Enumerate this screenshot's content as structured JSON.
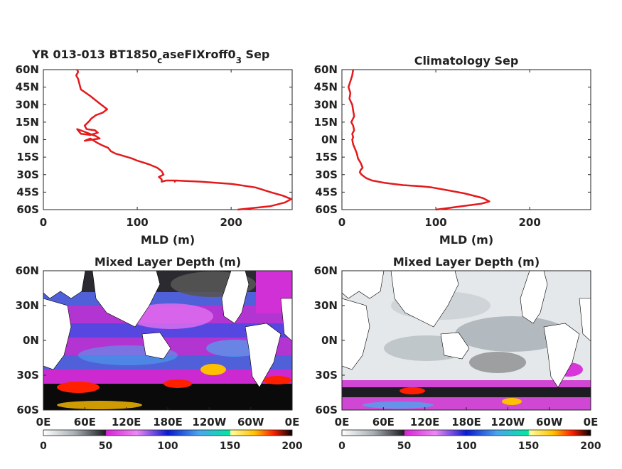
{
  "chart_data": [
    {
      "type": "line",
      "title_parts": [
        "YR 013-013 BT1850",
        "c",
        "aseFIXroff0",
        "3",
        " Sep"
      ],
      "xlabel": "MLD (m)",
      "ylabel": "",
      "xlim": [
        0,
        265
      ],
      "ylim": [
        -60,
        60
      ],
      "xticks": [
        0,
        100,
        200
      ],
      "xtick_labels": [
        "0",
        "100",
        "200"
      ],
      "yticks": [
        60,
        45,
        30,
        15,
        0,
        -15,
        -30,
        -45,
        -60
      ],
      "ytick_labels": [
        "60N",
        "45N",
        "30N",
        "15N",
        "0N",
        "15S",
        "30S",
        "45S",
        "60S"
      ],
      "grid": false,
      "series": [
        {
          "color": "#e31a1c",
          "x": [
            36,
            37,
            35,
            37,
            40,
            49,
            60,
            68,
            63,
            56,
            51,
            49,
            44,
            46,
            55,
            58,
            50,
            40,
            36,
            43,
            56,
            60,
            52,
            44,
            50,
            58,
            63,
            69,
            72,
            77,
            94,
            100,
            112,
            121,
            126,
            128,
            123,
            126,
            126,
            131,
            140,
            140,
            141,
            167,
            201,
            226,
            242,
            255,
            264,
            257,
            242,
            207
          ],
          "y": [
            60,
            58,
            55,
            52,
            43,
            38,
            31,
            26,
            23,
            21,
            18,
            16,
            12,
            9,
            8,
            6,
            4,
            5,
            9,
            7,
            3,
            1,
            0,
            -1,
            1,
            -3,
            -5,
            -7,
            -10,
            -12,
            -16,
            -18,
            -21,
            -24,
            -27,
            -30,
            -32,
            -34,
            -36,
            -35,
            -35,
            -36,
            -35,
            -36,
            -38,
            -41,
            -45,
            -48,
            -51,
            -54,
            -57,
            -60
          ]
        }
      ]
    },
    {
      "type": "line",
      "title": "Climatology Sep",
      "xlabel": "MLD (m)",
      "ylabel": "",
      "xlim": [
        0,
        265
      ],
      "ylim": [
        -60,
        60
      ],
      "xticks": [
        0,
        100,
        200
      ],
      "xtick_labels": [
        "0",
        "100",
        "200"
      ],
      "yticks": [
        60,
        45,
        30,
        15,
        0,
        -15,
        -30,
        -45,
        -60
      ],
      "ytick_labels": [
        "60N",
        "45N",
        "30N",
        "15N",
        "0N",
        "15S",
        "30S",
        "45S",
        "60S"
      ],
      "grid": false,
      "series": [
        {
          "color": "#e31a1c",
          "x": [
            12,
            11,
            9,
            7,
            9,
            8,
            11,
            12,
            13,
            10,
            12,
            13,
            11,
            12,
            11,
            12,
            14,
            16,
            17,
            20,
            22,
            20,
            19,
            21,
            26,
            32,
            45,
            65,
            85,
            96,
            110,
            130,
            150,
            157,
            148,
            128,
            110,
            100
          ],
          "y": [
            60,
            55,
            50,
            45,
            40,
            35,
            30,
            25,
            20,
            15,
            12,
            8,
            5,
            2,
            0,
            -4,
            -8,
            -12,
            -16,
            -20,
            -24,
            -26,
            -28,
            -30,
            -33,
            -35,
            -37,
            -39,
            -40,
            -41,
            -43,
            -46,
            -50,
            -53,
            -55,
            -57,
            -59,
            -60
          ]
        }
      ]
    },
    {
      "type": "heatmap",
      "title": "Mixed Layer Depth (m)",
      "xlim": [
        0,
        360
      ],
      "ylim": [
        -60,
        60
      ],
      "xtick_labels": [
        "0E",
        "60E",
        "120E",
        "180E",
        "120W",
        "60W",
        "0E"
      ],
      "ytick_labels": [
        "60N",
        "30N",
        "0N",
        "30S",
        "60S"
      ],
      "colorbar_ticks": [
        0,
        50,
        100,
        150,
        200
      ],
      "colorbar_tick_labels": [
        "0",
        "50",
        "100",
        "150",
        "200"
      ],
      "colorbar_range": [
        0,
        200
      ]
    },
    {
      "type": "heatmap",
      "title": "Mixed Layer Depth (m)",
      "xlim": [
        0,
        360
      ],
      "ylim": [
        -60,
        60
      ],
      "xtick_labels": [
        "0E",
        "60E",
        "120E",
        "180E",
        "120W",
        "60W",
        "0E"
      ],
      "ytick_labels": [
        "60N",
        "30N",
        "0N",
        "30S",
        "60S"
      ],
      "colorbar_ticks": [
        0,
        50,
        100,
        150,
        200
      ],
      "colorbar_tick_labels": [
        "0",
        "50",
        "100",
        "150",
        "200"
      ],
      "colorbar_range": [
        0,
        200
      ]
    }
  ],
  "colormap_stops": [
    {
      "v": 0,
      "color": "#ffffff"
    },
    {
      "v": 25,
      "color": "#a8b0b4"
    },
    {
      "v": 50,
      "color": "#1c1c22"
    },
    {
      "v": 50.5,
      "color": "#d622d8"
    },
    {
      "v": 75,
      "color": "#ee88f4"
    },
    {
      "v": 100,
      "color": "#0a1ad0"
    },
    {
      "v": 125,
      "color": "#4aa6ee"
    },
    {
      "v": 150,
      "color": "#00e8a0"
    },
    {
      "v": 150.5,
      "color": "#ffffa0"
    },
    {
      "v": 170,
      "color": "#ffc000"
    },
    {
      "v": 185,
      "color": "#ff2000"
    },
    {
      "v": 200,
      "color": "#000000"
    }
  ],
  "colors": {
    "land": "#ffffff",
    "line": "#e31a1c",
    "axis": "#222222"
  }
}
